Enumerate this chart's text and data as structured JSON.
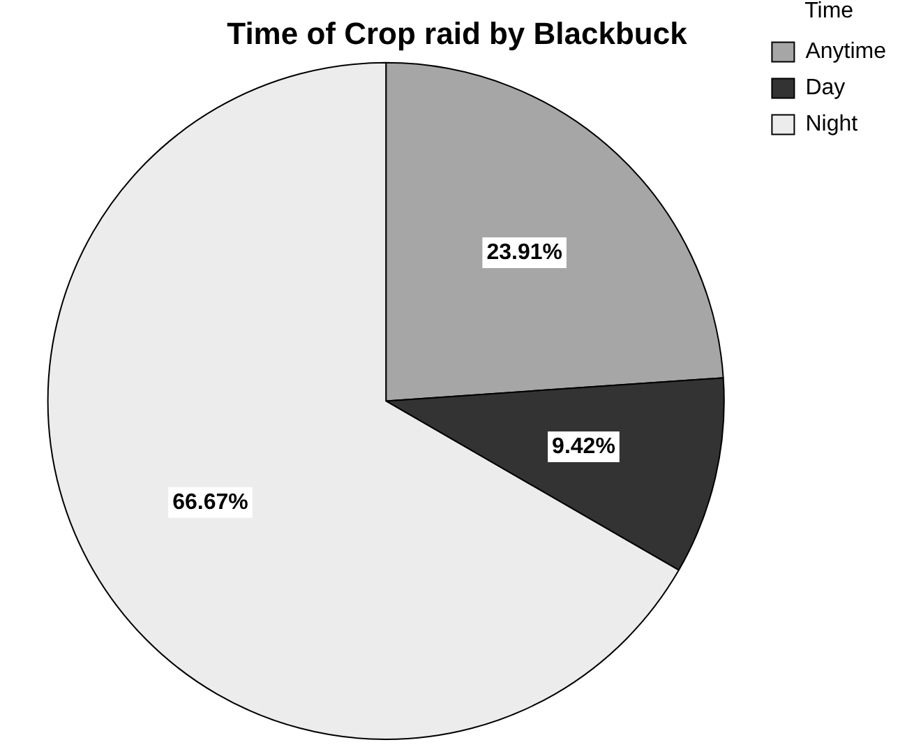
{
  "chart_data": {
    "type": "pie",
    "title": "Time of Crop raid by Blackbuck",
    "legend_title": "Time",
    "legend": "top right",
    "categories": [
      "Anytime",
      "Day",
      "Night"
    ],
    "values": [
      23.91,
      9.42,
      66.67
    ],
    "colors": [
      "#a6a6a6",
      "#333333",
      "#ececec"
    ],
    "value_labels": [
      "23.91%",
      "9.42%",
      "66.67%"
    ]
  }
}
